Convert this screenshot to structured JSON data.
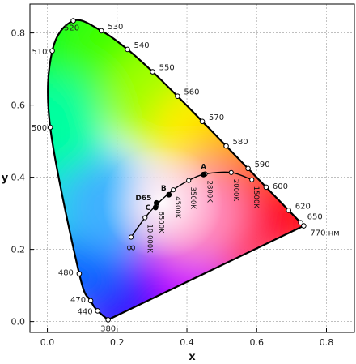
{
  "chart_data": {
    "type": "scatter",
    "title": "",
    "xlabel": "x",
    "ylabel": "y",
    "xlim": [
      -0.05,
      0.88
    ],
    "ylim": [
      -0.03,
      0.88
    ],
    "x_ticks": [
      "0.0",
      "0.2",
      "0.4",
      "0.6",
      "0.8"
    ],
    "y_ticks": [
      "0.0",
      "0.2",
      "0.4",
      "0.6",
      "0.8"
    ],
    "grid": true,
    "colors": {
      "locus": "#000000",
      "grid": "#aaaaaa",
      "marker_fill": "#ffffff",
      "point_fill": "#000000"
    },
    "spectral_locus": [
      {
        "label": "380",
        "x": 0.1741,
        "y": 0.005
      },
      {
        "label": "440",
        "x": 0.144,
        "y": 0.0297
      },
      {
        "label": "470",
        "x": 0.1241,
        "y": 0.0578
      },
      {
        "label": "480",
        "x": 0.0913,
        "y": 0.1327
      },
      {
        "label": "500",
        "x": 0.0082,
        "y": 0.5384
      },
      {
        "label": "510",
        "x": 0.0139,
        "y": 0.7502
      },
      {
        "label": "520",
        "x": 0.0743,
        "y": 0.8338
      },
      {
        "label": "530",
        "x": 0.1547,
        "y": 0.8059
      },
      {
        "label": "540",
        "x": 0.2296,
        "y": 0.7543
      },
      {
        "label": "550",
        "x": 0.3016,
        "y": 0.6923
      },
      {
        "label": "560",
        "x": 0.3731,
        "y": 0.6245
      },
      {
        "label": "570",
        "x": 0.4441,
        "y": 0.5547
      },
      {
        "label": "580",
        "x": 0.5125,
        "y": 0.4866
      },
      {
        "label": "590",
        "x": 0.5752,
        "y": 0.4242
      },
      {
        "label": "600",
        "x": 0.627,
        "y": 0.3725
      },
      {
        "label": "620",
        "x": 0.6915,
        "y": 0.3083
      },
      {
        "label": "650",
        "x": 0.726,
        "y": 0.274
      },
      {
        "label": "770 нм",
        "x": 0.7347,
        "y": 0.2653
      }
    ],
    "planckian_locus": [
      {
        "label": "∞",
        "x": 0.24,
        "y": 0.234
      },
      {
        "label": "10 000K",
        "x": 0.28,
        "y": 0.288
      },
      {
        "label": "6500K",
        "x": 0.313,
        "y": 0.324
      },
      {
        "label": "4500K",
        "x": 0.361,
        "y": 0.365
      },
      {
        "label": "3500K",
        "x": 0.405,
        "y": 0.391
      },
      {
        "label": "2800K",
        "x": 0.452,
        "y": 0.409
      },
      {
        "label": "2000K",
        "x": 0.527,
        "y": 0.413
      },
      {
        "label": "1500K",
        "x": 0.586,
        "y": 0.393
      }
    ],
    "illuminants": [
      {
        "label": "A",
        "x": 0.4476,
        "y": 0.4074
      },
      {
        "label": "B",
        "x": 0.3484,
        "y": 0.3516
      },
      {
        "label": "C",
        "x": 0.3101,
        "y": 0.3162
      },
      {
        "label": "D65",
        "x": 0.3127,
        "y": 0.329
      }
    ]
  }
}
